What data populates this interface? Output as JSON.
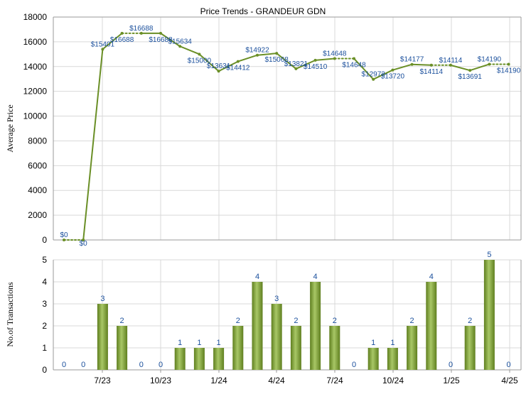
{
  "colors": {
    "line": "#6a8f26",
    "bar_dark": "#5f7f1f",
    "bar_light": "#a8c766",
    "label": "#1a4f9c",
    "grid": "#d9d9d9"
  },
  "chart_data": [
    {
      "type": "line",
      "title": "Price Trends - GRANDEUR GDN",
      "ylabel": "Average Price",
      "ylim": [
        0,
        18000
      ],
      "yticks": [
        0,
        2000,
        4000,
        6000,
        8000,
        10000,
        12000,
        14000,
        16000,
        18000
      ],
      "x_tick_labels": [
        "7/23",
        "10/23",
        "1/24",
        "4/24",
        "7/24",
        "10/24",
        "1/25",
        "4/25"
      ],
      "grid": true,
      "series": [
        {
          "values": [
            0,
            0,
            15401,
            16688,
            16688,
            16688,
            15634,
            15000,
            13631,
            14412,
            14922,
            15068,
            13821,
            14510,
            14648,
            14648,
            12973,
            13720,
            14177,
            14114,
            14114,
            13691,
            14190,
            14190
          ],
          "labels": [
            "$0",
            "$0",
            "$15401",
            "$16688",
            "$16688",
            "$16688",
            "$15634",
            "$15000",
            "$13631",
            "$14412",
            "$14922",
            "$15068",
            "$13821",
            "$14510",
            "$14648",
            "$14648",
            "$12973",
            "$13720",
            "$14177",
            "$14114",
            "$14114",
            "$13691",
            "$14190",
            "$14190"
          ],
          "dotted_to_next": [
            true,
            false,
            false,
            true,
            false,
            false,
            false,
            false,
            false,
            false,
            false,
            false,
            false,
            false,
            true,
            false,
            false,
            false,
            false,
            true,
            false,
            false,
            true,
            false
          ]
        }
      ]
    },
    {
      "type": "bar",
      "ylabel": "No.of Transactions",
      "ylim": [
        0,
        5
      ],
      "yticks": [
        0,
        1,
        2,
        3,
        4,
        5
      ],
      "x_tick_labels": [
        "7/23",
        "10/23",
        "1/24",
        "4/24",
        "7/24",
        "10/24",
        "1/25",
        "4/25"
      ],
      "grid": true,
      "values": [
        0,
        0,
        3,
        2,
        0,
        0,
        1,
        1,
        1,
        2,
        4,
        3,
        2,
        4,
        2,
        0,
        1,
        1,
        2,
        4,
        0,
        2,
        5,
        0
      ]
    }
  ]
}
